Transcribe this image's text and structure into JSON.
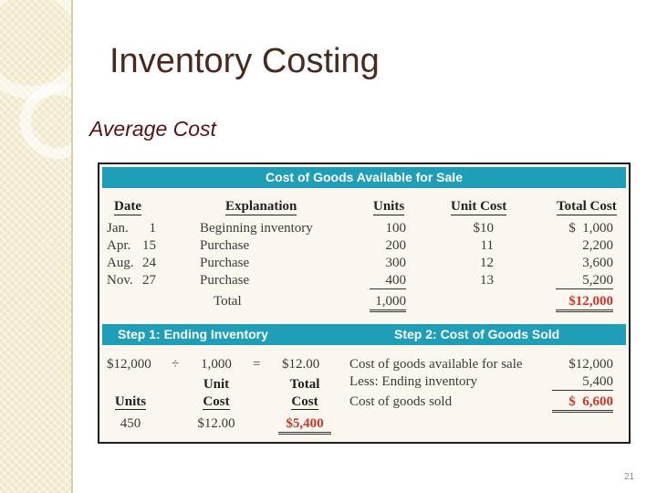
{
  "slide": {
    "title": "Inventory Costing",
    "subtitle": "Average Cost",
    "page_number": "21"
  },
  "figure": {
    "top_bar": "Cost of Goods Available for Sale",
    "headers": {
      "date": "Date",
      "explanation": "Explanation",
      "units": "Units",
      "unit_cost": "Unit Cost",
      "total_cost": "Total Cost"
    },
    "rows": [
      {
        "month": "Jan.",
        "day": "1",
        "explanation": "Beginning inventory",
        "units": "100",
        "unit_cost": "$10",
        "total_cost": "$  1,000"
      },
      {
        "month": "Apr.",
        "day": "15",
        "explanation": "Purchase",
        "units": "200",
        "unit_cost": "11",
        "total_cost": "2,200"
      },
      {
        "month": "Aug.",
        "day": "24",
        "explanation": "Purchase",
        "units": "300",
        "unit_cost": "12",
        "total_cost": "3,600"
      },
      {
        "month": "Nov.",
        "day": "27",
        "explanation": "Purchase",
        "units": "400",
        "unit_cost": "13",
        "total_cost": "5,200"
      }
    ],
    "total": {
      "label": "Total",
      "units": "1,000",
      "total_cost": "$12,000"
    },
    "step1": {
      "title": "Step 1: Ending Inventory",
      "equation": {
        "cogas": "$12,000",
        "divide": "÷",
        "units": "1,000",
        "equals": "=",
        "result": "$12.00"
      },
      "unit_cost_label_1": "Unit",
      "unit_cost_label_2": "Cost",
      "total_cost_label_1": "Total",
      "total_cost_label_2": "Cost",
      "units_label": "Units",
      "units_value": "450",
      "unit_cost_value": "$12.00",
      "total_cost_value": "$5,400"
    },
    "step2": {
      "title": "Step 2: Cost of Goods Sold",
      "lines": [
        {
          "label": "Cost of goods available for sale",
          "value": "$12,000"
        },
        {
          "label": "Less: Ending inventory",
          "value": "5,400"
        },
        {
          "label": "Cost of goods sold",
          "value": "$  6,600"
        }
      ]
    }
  },
  "colors": {
    "bar": "#1f9eb8",
    "highlight": "#c8372b",
    "title": "#4a2a1c",
    "subtitle": "#5a1212",
    "figure_bg": "#fbf6ee"
  }
}
